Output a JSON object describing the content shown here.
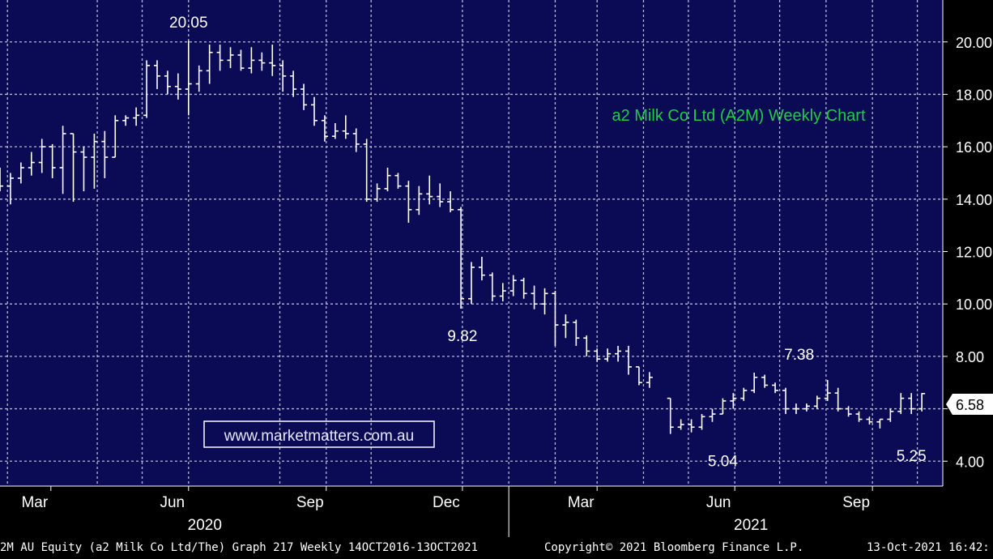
{
  "chart_data": {
    "type": "ohlc",
    "title": "a2 Milk Co Ltd (A2M) Weekly Chart",
    "watermark": "www.marketmatters.com.au",
    "y_ticks": [
      "20.00",
      "18.00",
      "16.00",
      "14.00",
      "12.00",
      "10.00",
      "8.00",
      "6.00",
      "4.00"
    ],
    "y_tick_values": [
      20,
      18,
      16,
      14,
      12,
      10,
      8,
      6,
      4
    ],
    "ylim": [
      3.05,
      21.6
    ],
    "x_start": "2020-01-27",
    "x_end": "2021-10-18",
    "month_ticks": [
      {
        "label": "Mar",
        "date": "2020-03-01"
      },
      {
        "label": "Jun",
        "date": "2020-06-01"
      },
      {
        "label": "Sep",
        "date": "2020-09-01"
      },
      {
        "label": "Dec",
        "date": "2020-12-01"
      },
      {
        "label": "Mar",
        "date": "2021-03-01"
      },
      {
        "label": "Jun",
        "date": "2021-06-01"
      },
      {
        "label": "Sep",
        "date": "2021-09-01"
      }
    ],
    "gridline_dates": [
      "2020-02-01",
      "2020-04-01",
      "2020-05-01",
      "2020-06-01",
      "2020-08-01",
      "2020-09-01",
      "2020-10-01",
      "2020-12-01",
      "2021-01-01",
      "2021-02-01",
      "2021-03-01",
      "2021-04-01",
      "2021-05-01",
      "2021-06-01",
      "2021-07-01",
      "2021-08-01",
      "2021-09-01",
      "2021-10-01"
    ],
    "year_labels": [
      {
        "label": "2020",
        "date": "2020-06-01"
      },
      {
        "label": "2021",
        "date": "2021-06-01"
      }
    ],
    "year_divider_date": "2021-01-01",
    "last_price_label": "6.58",
    "last_price": 6.58,
    "annotations": [
      {
        "label": "20.05",
        "date": "2020-06-01",
        "value": 20.05,
        "pos": "above"
      },
      {
        "label": "9.82",
        "date": "2020-12-01",
        "value": 9.82,
        "pos": "below"
      },
      {
        "label": "7.38",
        "date": "2021-07-14",
        "value": 7.38,
        "pos": "above"
      },
      {
        "label": "5.04",
        "date": "2021-05-24",
        "value": 5.04,
        "pos": "below"
      },
      {
        "label": "5.25",
        "date": "2021-09-27",
        "value": 5.25,
        "pos": "below"
      }
    ],
    "ohlc": [
      [
        "2020-01-27",
        15.0,
        15.2,
        14.3,
        14.5
      ],
      [
        "2020-02-03",
        14.5,
        15.0,
        13.8,
        14.8
      ],
      [
        "2020-02-10",
        14.8,
        15.4,
        14.6,
        15.2
      ],
      [
        "2020-02-17",
        15.2,
        15.8,
        14.9,
        15.4
      ],
      [
        "2020-02-24",
        15.4,
        16.3,
        15.0,
        16.0
      ],
      [
        "2020-03-02",
        16.0,
        16.1,
        14.8,
        15.2
      ],
      [
        "2020-03-09",
        15.2,
        16.8,
        14.2,
        16.5
      ],
      [
        "2020-03-16",
        16.5,
        16.5,
        13.9,
        15.8
      ],
      [
        "2020-03-23",
        15.8,
        16.0,
        14.3,
        15.6
      ],
      [
        "2020-03-30",
        15.6,
        16.5,
        14.4,
        16.2
      ],
      [
        "2020-04-06",
        16.2,
        16.6,
        14.8,
        15.6
      ],
      [
        "2020-04-13",
        15.6,
        17.2,
        15.6,
        17.0
      ],
      [
        "2020-04-20",
        17.0,
        17.2,
        16.8,
        17.1
      ],
      [
        "2020-04-27",
        17.1,
        17.5,
        16.8,
        17.2
      ],
      [
        "2020-05-04",
        17.2,
        19.3,
        17.1,
        19.1
      ],
      [
        "2020-05-11",
        19.1,
        19.3,
        18.2,
        18.7
      ],
      [
        "2020-05-18",
        18.7,
        18.9,
        18.0,
        18.3
      ],
      [
        "2020-05-25",
        18.3,
        18.8,
        17.8,
        18.2
      ],
      [
        "2020-06-01",
        18.2,
        20.05,
        17.2,
        18.4
      ],
      [
        "2020-06-08",
        18.4,
        19.1,
        18.1,
        18.9
      ],
      [
        "2020-06-15",
        18.9,
        19.9,
        18.4,
        19.6
      ],
      [
        "2020-06-22",
        19.6,
        19.9,
        18.9,
        19.3
      ],
      [
        "2020-06-29",
        19.3,
        19.8,
        19.0,
        19.5
      ],
      [
        "2020-07-06",
        19.5,
        19.7,
        18.9,
        19.0
      ],
      [
        "2020-07-13",
        19.0,
        19.8,
        18.8,
        19.3
      ],
      [
        "2020-07-20",
        19.3,
        19.6,
        18.9,
        19.2
      ],
      [
        "2020-07-27",
        19.2,
        19.9,
        18.7,
        19.1
      ],
      [
        "2020-08-03",
        19.1,
        19.3,
        18.1,
        18.7
      ],
      [
        "2020-08-10",
        18.7,
        18.9,
        17.9,
        18.2
      ],
      [
        "2020-08-17",
        18.2,
        18.4,
        17.4,
        17.6
      ],
      [
        "2020-08-24",
        17.6,
        17.9,
        16.8,
        17.0
      ],
      [
        "2020-08-31",
        17.0,
        17.2,
        16.2,
        16.4
      ],
      [
        "2020-09-07",
        16.4,
        16.9,
        16.3,
        16.6
      ],
      [
        "2020-09-14",
        16.6,
        17.2,
        16.3,
        16.5
      ],
      [
        "2020-09-21",
        16.5,
        16.7,
        15.8,
        16.1
      ],
      [
        "2020-09-28",
        16.1,
        16.3,
        13.9,
        14.0
      ],
      [
        "2020-10-05",
        14.0,
        14.6,
        13.9,
        14.4
      ],
      [
        "2020-10-12",
        14.4,
        15.2,
        14.3,
        14.9
      ],
      [
        "2020-10-19",
        14.9,
        15.0,
        14.4,
        14.5
      ],
      [
        "2020-10-26",
        14.5,
        14.7,
        13.1,
        13.6
      ],
      [
        "2020-11-02",
        13.6,
        14.5,
        13.4,
        14.2
      ],
      [
        "2020-11-09",
        14.2,
        14.9,
        13.8,
        14.1
      ],
      [
        "2020-11-16",
        14.1,
        14.6,
        13.7,
        13.9
      ],
      [
        "2020-11-23",
        13.9,
        14.3,
        13.5,
        13.6
      ],
      [
        "2020-11-30",
        13.6,
        13.7,
        9.82,
        10.2
      ],
      [
        "2020-12-07",
        10.2,
        11.6,
        10.0,
        11.4
      ],
      [
        "2020-12-14",
        11.4,
        11.8,
        10.9,
        11.1
      ],
      [
        "2020-12-21",
        11.1,
        11.2,
        10.1,
        10.3
      ],
      [
        "2020-12-28",
        10.3,
        10.8,
        10.1,
        10.5
      ],
      [
        "2021-01-04",
        10.5,
        11.1,
        10.3,
        10.9
      ],
      [
        "2021-01-11",
        10.9,
        11.0,
        10.2,
        10.4
      ],
      [
        "2021-01-18",
        10.4,
        10.7,
        9.8,
        10.0
      ],
      [
        "2021-01-25",
        10.0,
        10.6,
        9.6,
        10.4
      ],
      [
        "2021-02-01",
        10.4,
        10.5,
        8.4,
        9.2
      ],
      [
        "2021-02-08",
        9.2,
        9.6,
        8.7,
        9.3
      ],
      [
        "2021-02-15",
        9.3,
        9.4,
        8.4,
        8.7
      ],
      [
        "2021-02-22",
        8.7,
        8.8,
        8.0,
        8.2
      ],
      [
        "2021-03-01",
        8.2,
        8.3,
        7.8,
        7.9
      ],
      [
        "2021-03-08",
        7.9,
        8.3,
        7.8,
        8.1
      ],
      [
        "2021-03-15",
        8.1,
        8.4,
        7.8,
        8.2
      ],
      [
        "2021-03-22",
        8.2,
        8.4,
        7.3,
        7.6
      ],
      [
        "2021-03-29",
        7.6,
        7.6,
        6.9,
        7.0
      ],
      [
        "2021-04-05",
        7.0,
        7.4,
        6.8,
        7.2
      ],
      [
        "2021-04-19",
        6.4,
        6.4,
        5.04,
        5.3
      ],
      [
        "2021-04-26",
        5.3,
        5.6,
        5.2,
        5.4
      ],
      [
        "2021-05-03",
        5.4,
        5.6,
        5.1,
        5.3
      ],
      [
        "2021-05-10",
        5.3,
        5.8,
        5.2,
        5.7
      ],
      [
        "2021-05-17",
        5.7,
        6.0,
        5.5,
        5.8
      ],
      [
        "2021-05-24",
        5.8,
        6.4,
        5.8,
        6.3
      ],
      [
        "2021-05-31",
        6.3,
        6.6,
        6.0,
        6.4
      ],
      [
        "2021-06-07",
        6.4,
        6.8,
        6.3,
        6.7
      ],
      [
        "2021-06-14",
        6.7,
        7.38,
        6.6,
        7.2
      ],
      [
        "2021-06-21",
        7.2,
        7.3,
        6.8,
        6.9
      ],
      [
        "2021-06-28",
        6.9,
        7.0,
        6.6,
        6.7
      ],
      [
        "2021-07-05",
        6.7,
        6.8,
        5.8,
        6.0
      ],
      [
        "2021-07-12",
        6.0,
        6.2,
        5.8,
        6.0
      ],
      [
        "2021-07-19",
        6.0,
        6.2,
        5.9,
        6.1
      ],
      [
        "2021-07-26",
        6.1,
        6.5,
        6.0,
        6.4
      ],
      [
        "2021-08-02",
        6.4,
        7.1,
        6.3,
        6.6
      ],
      [
        "2021-08-09",
        6.6,
        6.8,
        5.9,
        6.0
      ],
      [
        "2021-08-16",
        6.0,
        6.1,
        5.7,
        5.8
      ],
      [
        "2021-08-23",
        5.8,
        5.9,
        5.5,
        5.6
      ],
      [
        "2021-08-30",
        5.6,
        5.7,
        5.4,
        5.5
      ],
      [
        "2021-09-06",
        5.5,
        5.6,
        5.25,
        5.6
      ],
      [
        "2021-09-13",
        5.6,
        6.0,
        5.5,
        5.9
      ],
      [
        "2021-09-20",
        5.9,
        6.6,
        5.8,
        6.4
      ],
      [
        "2021-09-27",
        6.4,
        6.6,
        5.8,
        6.0
      ],
      [
        "2021-10-04",
        6.0,
        6.6,
        5.9,
        6.58
      ]
    ],
    "colors": {
      "background": "#0a0a55",
      "grid": "#b8b8d8",
      "bars": "#ffffff",
      "title": "#22cc44",
      "watermark_text": "#e6e6ff",
      "watermark_border": "#ffffff"
    }
  },
  "footer": {
    "left": "2M AU Equity (a2 Milk Co Ltd/The) Graph 217  Weekly 14OCT2016-13OCT2021",
    "center": "Copyright© 2021 Bloomberg Finance L.P.",
    "right": "13-Oct-2021 16:42:"
  }
}
